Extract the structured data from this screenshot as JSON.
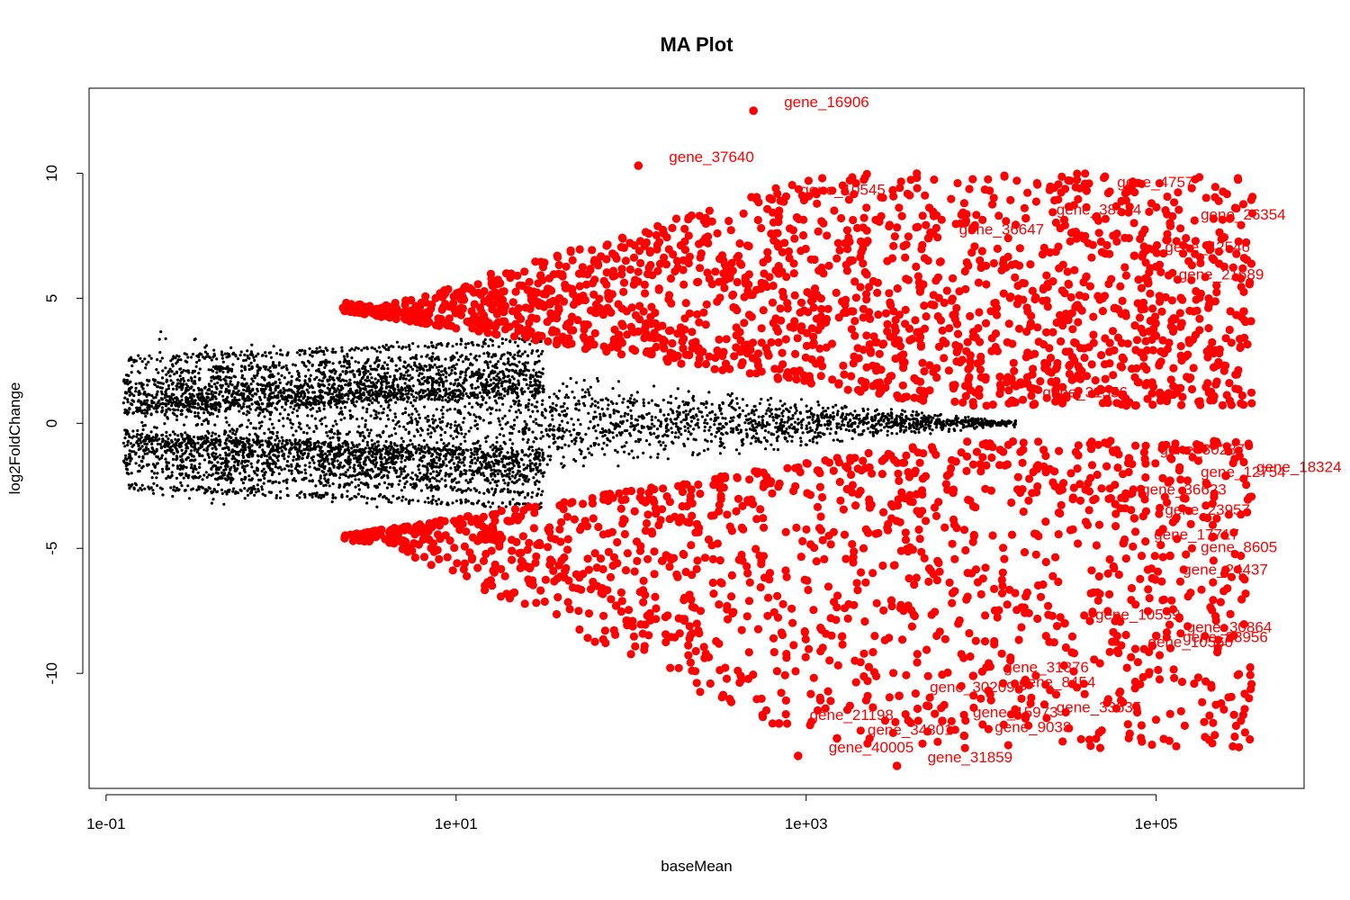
{
  "chart_data": {
    "type": "scatter",
    "title": "MA Plot",
    "xlabel": "baseMean",
    "ylabel": "log2FoldChange",
    "x_scale": "log10",
    "xlim": [
      0.08,
      700000
    ],
    "ylim": [
      -14.6,
      13.4
    ],
    "x_ticks": [
      {
        "value": 0.1,
        "label": "1e-01"
      },
      {
        "value": 10,
        "label": "1e+01"
      },
      {
        "value": 1000,
        "label": "1e+03"
      },
      {
        "value": 100000,
        "label": "1e+05"
      }
    ],
    "y_ticks": [
      {
        "value": -10,
        "label": "-10"
      },
      {
        "value": -5,
        "label": "-5"
      },
      {
        "value": 0,
        "label": "0"
      },
      {
        "value": 5,
        "label": "5"
      },
      {
        "value": 10,
        "label": "10"
      }
    ],
    "grid": false,
    "colors": {
      "not_significant": "#000000",
      "significant": "#ff0000"
    },
    "labeled_genes": [
      {
        "name": "gene_16906",
        "x": 500,
        "y": 12.5
      },
      {
        "name": "gene_37640",
        "x": 110,
        "y": 10.3
      },
      {
        "name": "gene_4757",
        "x": 40000,
        "y": 9.3
      },
      {
        "name": "gene_10545",
        "x": 620,
        "y": 9.0
      },
      {
        "name": "gene_26354",
        "x": 120000,
        "y": 8.0
      },
      {
        "name": "gene_38524",
        "x": 18000,
        "y": 8.2
      },
      {
        "name": "gene_36647",
        "x": 5000,
        "y": 7.4
      },
      {
        "name": "gene_42546",
        "x": 75000,
        "y": 6.7
      },
      {
        "name": "gene_21689",
        "x": 90000,
        "y": 5.6
      },
      {
        "name": "gene_31556",
        "x": 15000,
        "y": 0.9
      },
      {
        "name": "gene_30287",
        "x": 70000,
        "y": -1.4
      },
      {
        "name": "gene_18324",
        "x": 250000,
        "y": -2.1
      },
      {
        "name": "gene_12754",
        "x": 120000,
        "y": -2.3
      },
      {
        "name": "gene_36623",
        "x": 55000,
        "y": -3.0
      },
      {
        "name": "gene_23957",
        "x": 75000,
        "y": -3.8
      },
      {
        "name": "gene_17717",
        "x": 65000,
        "y": -4.8
      },
      {
        "name": "gene_8605",
        "x": 120000,
        "y": -5.3
      },
      {
        "name": "gene_24437",
        "x": 95000,
        "y": -6.2
      },
      {
        "name": "gene_10559",
        "x": 30000,
        "y": -8.0
      },
      {
        "name": "gene_30864",
        "x": 100000,
        "y": -8.5
      },
      {
        "name": "gene_23956",
        "x": 95000,
        "y": -8.9
      },
      {
        "name": "gene_10560",
        "x": 60000,
        "y": -9.1
      },
      {
        "name": "gene_31876",
        "x": 9000,
        "y": -10.1
      },
      {
        "name": "gene_8454",
        "x": 11000,
        "y": -10.7
      },
      {
        "name": "gene_30209",
        "x": 3400,
        "y": -10.9
      },
      {
        "name": "gene_33635",
        "x": 18000,
        "y": -11.7
      },
      {
        "name": "gene_15973",
        "x": 6000,
        "y": -11.9
      },
      {
        "name": "gene_9038",
        "x": 8000,
        "y": -12.5
      },
      {
        "name": "gene_21198",
        "x": 700,
        "y": -12.0
      },
      {
        "name": "gene_34801",
        "x": 1500,
        "y": -12.6
      },
      {
        "name": "gene_40005",
        "x": 900,
        "y": -13.3
      },
      {
        "name": "gene_31859",
        "x": 3300,
        "y": -13.7
      }
    ]
  }
}
